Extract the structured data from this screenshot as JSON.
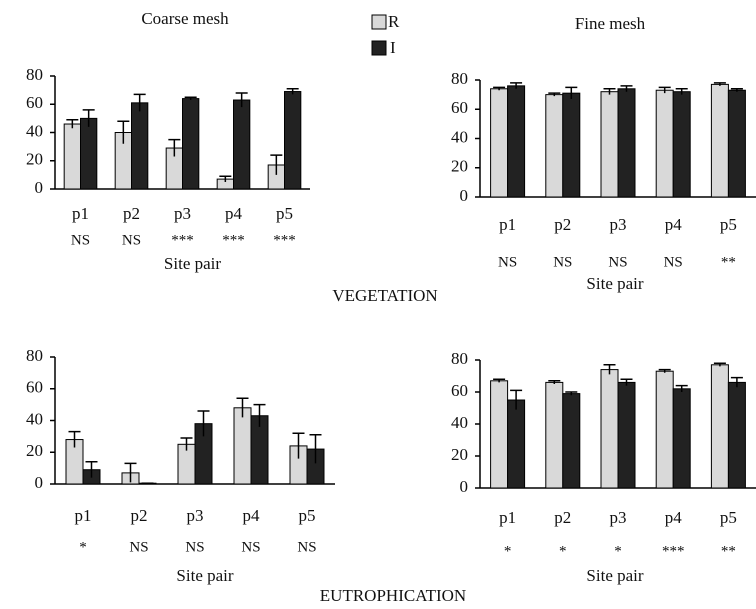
{
  "section_labels": [
    "VEGETATION",
    "EUTROPHICATION"
  ],
  "chart_data": [
    {
      "type": "bar",
      "title": "Coarse mesh",
      "x_label": "Site pair",
      "categories": [
        "p1",
        "p2",
        "p3",
        "p4",
        "p5"
      ],
      "significance": [
        "NS",
        "NS",
        "***",
        "***",
        "***"
      ],
      "series": [
        {
          "name": "R",
          "color": "#d9d9d9",
          "values": [
            46,
            40,
            29,
            7,
            17
          ],
          "errors": [
            3,
            8,
            6,
            2,
            7
          ]
        },
        {
          "name": "I",
          "color": "#222222",
          "values": [
            50,
            61,
            64,
            63,
            69
          ],
          "errors": [
            6,
            6,
            1,
            5,
            2
          ]
        }
      ],
      "ylim": [
        0,
        80
      ],
      "yticks": [
        0,
        20,
        40,
        60,
        80
      ]
    },
    {
      "type": "bar",
      "title": "Fine mesh",
      "x_label": "Site pair",
      "categories": [
        "p1",
        "p2",
        "p3",
        "p4",
        "p5"
      ],
      "significance": [
        "NS",
        "NS",
        "NS",
        "NS",
        "**"
      ],
      "series": [
        {
          "name": "R",
          "color": "#d9d9d9",
          "values": [
            74,
            70,
            72,
            73,
            77
          ],
          "errors": [
            1,
            1,
            2,
            2,
            1
          ]
        },
        {
          "name": "I",
          "color": "#222222",
          "values": [
            76,
            71,
            74,
            72,
            73
          ],
          "errors": [
            2,
            4,
            2,
            2,
            1
          ]
        }
      ],
      "ylim": [
        0,
        80
      ],
      "yticks": [
        0,
        20,
        40,
        60,
        80
      ]
    },
    {
      "type": "bar",
      "x_label": "Site pair",
      "categories": [
        "p1",
        "p2",
        "p3",
        "p4",
        "p5"
      ],
      "significance": [
        "*",
        "NS",
        "NS",
        "NS",
        "NS"
      ],
      "series": [
        {
          "name": "R",
          "color": "#d9d9d9",
          "values": [
            28,
            7,
            25,
            48,
            24
          ],
          "errors": [
            5,
            6,
            4,
            6,
            8
          ]
        },
        {
          "name": "I",
          "color": "#222222",
          "values": [
            9,
            0.5,
            38,
            43,
            22
          ],
          "errors": [
            5,
            0,
            8,
            7,
            9
          ]
        }
      ],
      "ylim": [
        0,
        80
      ],
      "yticks": [
        0,
        20,
        40,
        60,
        80
      ]
    },
    {
      "type": "bar",
      "x_label": "Site pair",
      "categories": [
        "p1",
        "p2",
        "p3",
        "p4",
        "p5"
      ],
      "significance": [
        "*",
        "*",
        "*",
        "***",
        "**"
      ],
      "series": [
        {
          "name": "R",
          "color": "#d9d9d9",
          "values": [
            67,
            66,
            74,
            73,
            77
          ],
          "errors": [
            1,
            1,
            3,
            1,
            1
          ]
        },
        {
          "name": "I",
          "color": "#222222",
          "values": [
            55,
            59,
            66,
            62,
            66
          ],
          "errors": [
            6,
            1,
            2,
            2,
            3
          ]
        }
      ],
      "ylim": [
        0,
        80
      ],
      "yticks": [
        0,
        20,
        40,
        60,
        80
      ]
    }
  ]
}
